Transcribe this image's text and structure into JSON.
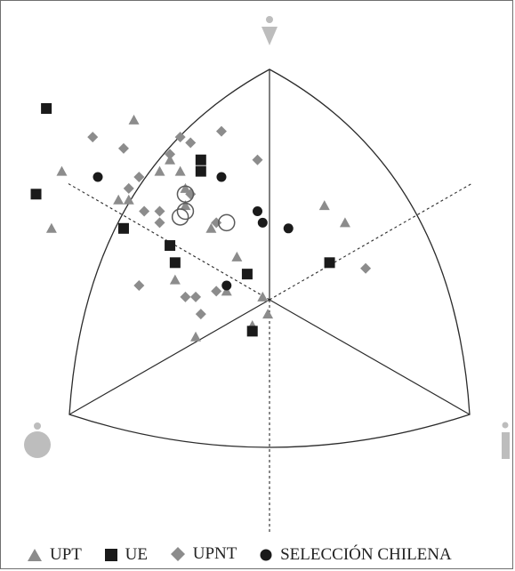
{
  "chart_data": {
    "type": "scatter",
    "title": "",
    "colors": {
      "UPT": "#8c8c8c",
      "UE": "#1a1a1a",
      "UPNT": "#8c8c8c",
      "SELECCIÓN CHILENA": "#1a1a1a",
      "open_circles": "#5a5a5a",
      "corner_icons": "#bdbdbd",
      "chart_lines": "#2b2b2b"
    },
    "series": [
      {
        "name": "UPT",
        "marker": "triangle",
        "points": [
          [
            0.26,
            0.79
          ],
          [
            0.12,
            0.7
          ],
          [
            0.1,
            0.6
          ],
          [
            0.23,
            0.65
          ],
          [
            0.25,
            0.65
          ],
          [
            0.31,
            0.7
          ],
          [
            0.33,
            0.72
          ],
          [
            0.35,
            0.7
          ],
          [
            0.36,
            0.67
          ],
          [
            0.36,
            0.64
          ],
          [
            0.41,
            0.6
          ],
          [
            0.46,
            0.55
          ],
          [
            0.34,
            0.51
          ],
          [
            0.44,
            0.49
          ],
          [
            0.51,
            0.48
          ],
          [
            0.38,
            0.41
          ],
          [
            0.49,
            0.43
          ],
          [
            0.52,
            0.45
          ],
          [
            0.63,
            0.64
          ],
          [
            0.67,
            0.61
          ]
        ]
      },
      {
        "name": "UE",
        "marker": "square",
        "points": [
          [
            0.09,
            0.81
          ],
          [
            0.07,
            0.66
          ],
          [
            0.24,
            0.6
          ],
          [
            0.33,
            0.57
          ],
          [
            0.34,
            0.54
          ],
          [
            0.39,
            0.72
          ],
          [
            0.39,
            0.7
          ],
          [
            0.48,
            0.52
          ],
          [
            0.49,
            0.42
          ],
          [
            0.64,
            0.54
          ]
        ]
      },
      {
        "name": "UPNT",
        "marker": "diamond",
        "points": [
          [
            0.18,
            0.76
          ],
          [
            0.24,
            0.74
          ],
          [
            0.33,
            0.73
          ],
          [
            0.35,
            0.76
          ],
          [
            0.37,
            0.75
          ],
          [
            0.43,
            0.77
          ],
          [
            0.5,
            0.72
          ],
          [
            0.27,
            0.69
          ],
          [
            0.25,
            0.67
          ],
          [
            0.28,
            0.63
          ],
          [
            0.31,
            0.63
          ],
          [
            0.31,
            0.61
          ],
          [
            0.37,
            0.66
          ],
          [
            0.42,
            0.61
          ],
          [
            0.27,
            0.5
          ],
          [
            0.36,
            0.48
          ],
          [
            0.38,
            0.48
          ],
          [
            0.42,
            0.49
          ],
          [
            0.39,
            0.45
          ],
          [
            0.71,
            0.53
          ]
        ]
      },
      {
        "name": "SELECCIÓN CHILENA",
        "marker": "filled-circle",
        "points": [
          [
            0.19,
            0.69
          ],
          [
            0.43,
            0.69
          ],
          [
            0.5,
            0.63
          ],
          [
            0.51,
            0.61
          ],
          [
            0.56,
            0.6
          ],
          [
            0.44,
            0.5
          ]
        ]
      },
      {
        "name": "",
        "marker": "open-circle",
        "points": [
          [
            0.36,
            0.66
          ],
          [
            0.36,
            0.63
          ],
          [
            0.35,
            0.62
          ],
          [
            0.44,
            0.61
          ]
        ]
      }
    ],
    "legend": {
      "placement": "bottom",
      "entries": [
        "UPT",
        "UE",
        "UPNT",
        "SELECCIÓN CHILENA"
      ]
    },
    "grid": false
  }
}
